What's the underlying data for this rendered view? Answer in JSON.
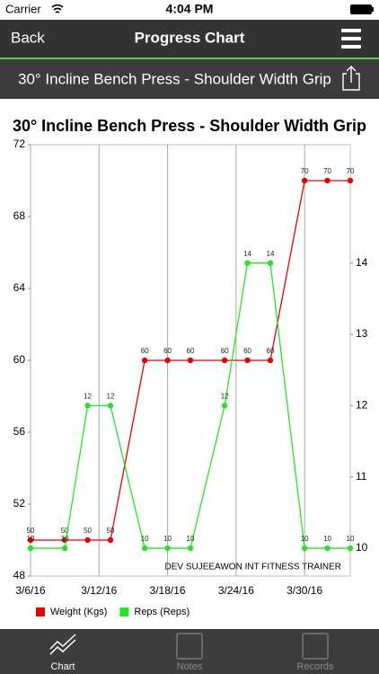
{
  "status_bar": {
    "carrier": "Carrier",
    "time": "4:04 PM"
  },
  "nav": {
    "back": "Back",
    "title": "Progress Chart"
  },
  "exercise": "30° Incline Bench Press - Shoulder Width Grip",
  "chart_data": {
    "type": "line",
    "title": "30° Incline Bench Press - Shoulder Width Grip",
    "x": [
      "3/6/16",
      "3/9/16",
      "3/11/16",
      "3/13/16",
      "3/16/16",
      "3/18/16",
      "3/20/16",
      "3/23/16",
      "3/25/16",
      "3/27/16",
      "3/30/16",
      "4/1/16",
      "4/3/16"
    ],
    "xlim": [
      "3/6/16",
      "4/3/16"
    ],
    "xticks": [
      "3/6/16",
      "3/12/16",
      "3/18/16",
      "3/24/16",
      "3/30/16"
    ],
    "ylim": [
      48,
      72
    ],
    "yticks": [
      48,
      52,
      56,
      60,
      64,
      68,
      72
    ],
    "y2lim": [
      9.61,
      15.66
    ],
    "y2ticks": [
      10,
      11,
      12,
      13,
      14
    ],
    "grid": true,
    "legend": "bottom-left",
    "annotation": "DEV SUJEEAWON INT FITNESS TRAINER",
    "series": [
      {
        "name": "Weight (Kgs)",
        "color": "#e60000",
        "values": [
          50,
          50,
          50,
          50,
          60,
          60,
          60,
          60,
          60,
          60,
          70,
          70,
          70
        ]
      },
      {
        "name": "Reps (Reps)",
        "color": "#22e622",
        "axis": "y2",
        "values": [
          10,
          10,
          12,
          12,
          10,
          10,
          10,
          12,
          14,
          14,
          10,
          10,
          10
        ]
      }
    ]
  },
  "tabs": [
    "Chart",
    "Notes",
    "Records"
  ]
}
